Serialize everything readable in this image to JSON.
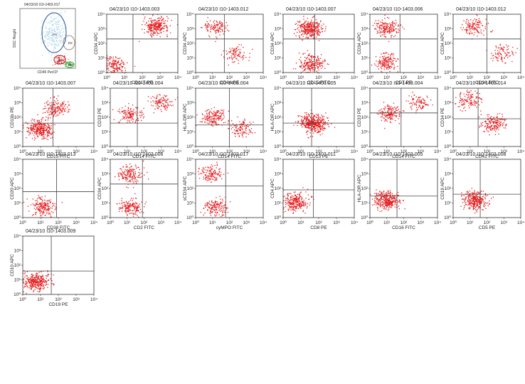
{
  "colors": {
    "dots": "#e41a1c",
    "axis": "#333333",
    "quad": "#444444",
    "gate_lymph": "#2e9e2e",
    "gate_blast": "#c00000",
    "gate_main": "#1f4e9a",
    "gate_other": "#8a6d57",
    "dots_blue": "#8fc3e6"
  },
  "gating_plot": {
    "title": "04/23/10 I10-1403.017",
    "xlabel": "CD45 PerCP",
    "ylabel": "SSC Height",
    "gate_labels": [
      "R4",
      "R2",
      "R1",
      "R3"
    ]
  },
  "chart_data": [
    {
      "type": "scatter",
      "title": "04/23/10 I10-1403.003",
      "xlabel": "CD117 PE",
      "ylabel": "CD34 APC",
      "x_ticks": [
        "10⁰",
        "10¹",
        "10²",
        "10³",
        "10⁴"
      ],
      "y_ticks": [
        "10⁰",
        "10¹",
        "10²",
        "10³",
        "10⁴"
      ],
      "xlim": [
        1,
        10000
      ],
      "ylim": [
        1,
        10000
      ],
      "log_scale": true,
      "quadrant": [
        30,
        200
      ],
      "populations": [
        {
          "cx": 600,
          "cy": 1500,
          "n": 260
        },
        {
          "cx": 3,
          "cy": 3,
          "n": 150
        }
      ]
    },
    {
      "type": "scatter",
      "title": "04/23/10 I10-1403.012",
      "xlabel": "CD64 PE",
      "ylabel": "CD34 APC",
      "x_ticks": [
        "10⁰",
        "10¹",
        "10²",
        "10³",
        "10⁴"
      ],
      "y_ticks": [
        "10⁰",
        "10¹",
        "10²",
        "10³",
        "10⁴"
      ],
      "xlim": [
        1,
        10000
      ],
      "ylim": [
        1,
        10000
      ],
      "log_scale": true,
      "quadrant": [
        50,
        200
      ],
      "populations": [
        {
          "cx": 15,
          "cy": 1200,
          "n": 120
        },
        {
          "cx": 250,
          "cy": 20,
          "n": 90
        }
      ]
    },
    {
      "type": "scatter",
      "title": "04/23/10 I10-1403.007",
      "xlabel": "CD15 FITC",
      "ylabel": "CD34 APC",
      "x_ticks": [
        "10⁰",
        "10¹",
        "10²",
        "10³",
        "10⁴"
      ],
      "y_ticks": [
        "10⁰",
        "10¹",
        "10²",
        "10³",
        "10⁴"
      ],
      "xlim": [
        1,
        10000
      ],
      "ylim": [
        1,
        10000
      ],
      "log_scale": true,
      "quadrant": [
        60,
        200
      ],
      "populations": [
        {
          "cx": 30,
          "cy": 1000,
          "n": 320
        },
        {
          "cx": 40,
          "cy": 4,
          "n": 220
        }
      ]
    },
    {
      "type": "scatter",
      "title": "04/23/10 I10-1403.006",
      "xlabel": "CD7 PE",
      "ylabel": "CD34 APC",
      "x_ticks": [
        "10⁰",
        "10¹",
        "10²",
        "10³",
        "10⁴"
      ],
      "y_ticks": [
        "10⁰",
        "10¹",
        "10²",
        "10³",
        "10⁴"
      ],
      "xlim": [
        1,
        10000
      ],
      "ylim": [
        1,
        10000
      ],
      "log_scale": true,
      "quadrant": [
        60,
        200
      ],
      "populations": [
        {
          "cx": 10,
          "cy": 1200,
          "n": 180
        },
        {
          "cx": 10,
          "cy": 5,
          "n": 160
        }
      ]
    },
    {
      "type": "scatter",
      "title": "04/23/10 I10-1403.012",
      "xlabel": "CD36 FITC",
      "ylabel": "CD34 APC",
      "x_ticks": [
        "10⁰",
        "10¹",
        "10²",
        "10³",
        "10⁴"
      ],
      "y_ticks": [
        "10⁰",
        "10¹",
        "10²",
        "10³",
        "10⁴"
      ],
      "xlim": [
        1,
        10000
      ],
      "ylim": [
        1,
        10000
      ],
      "log_scale": true,
      "quadrant": [
        100,
        200
      ],
      "populations": [
        {
          "cx": 20,
          "cy": 1500,
          "n": 130
        },
        {
          "cx": 800,
          "cy": 20,
          "n": 90
        }
      ]
    },
    {
      "type": "scatter",
      "title": "04/23/10 I10-1403.007",
      "xlabel": "CD15 FITC",
      "ylabel": "CD11b PE",
      "x_ticks": [
        "10⁰",
        "10¹",
        "10²",
        "10³",
        "10⁴"
      ],
      "y_ticks": [
        "10⁰",
        "10¹",
        "10²",
        "10³",
        "10⁴"
      ],
      "xlim": [
        1,
        10000
      ],
      "ylim": [
        1,
        10000
      ],
      "log_scale": true,
      "quadrant": [
        50,
        40
      ],
      "populations": [
        {
          "cx": 10,
          "cy": 15,
          "n": 300
        },
        {
          "cx": 60,
          "cy": 400,
          "n": 160
        }
      ]
    },
    {
      "type": "scatter",
      "title": "04/23/10 I10-1403.004",
      "xlabel": "CD14 FITC",
      "ylabel": "CD33 PE",
      "x_ticks": [
        "10⁰",
        "10¹",
        "10²",
        "10³",
        "10⁴"
      ],
      "y_ticks": [
        "10⁰",
        "10¹",
        "10²",
        "10³",
        "10⁴"
      ],
      "xlim": [
        1,
        10000
      ],
      "ylim": [
        1,
        10000
      ],
      "log_scale": true,
      "quadrant": [
        40,
        40
      ],
      "populations": [
        {
          "cx": 15,
          "cy": 150,
          "n": 140
        },
        {
          "cx": 1000,
          "cy": 1000,
          "n": 110
        }
      ]
    },
    {
      "type": "scatter",
      "title": "04/23/10 I10-1403.004",
      "xlabel": "CD14 FITC",
      "ylabel": "HLA-DR APC",
      "x_ticks": [
        "10⁰",
        "10¹",
        "10²",
        "10³",
        "10⁴"
      ],
      "y_ticks": [
        "10⁰",
        "10¹",
        "10²",
        "10³",
        "10⁴"
      ],
      "xlim": [
        1,
        10000
      ],
      "ylim": [
        1,
        10000
      ],
      "log_scale": true,
      "quadrant": [
        100,
        30
      ],
      "populations": [
        {
          "cx": 10,
          "cy": 100,
          "n": 160
        },
        {
          "cx": 500,
          "cy": 15,
          "n": 110
        }
      ]
    },
    {
      "type": "scatter",
      "title": "04/23/10 I10-1403.005",
      "xlabel": "CD13 PE",
      "ylabel": "HLA-DR APC",
      "x_ticks": [
        "10⁰",
        "10¹",
        "10²",
        "10³",
        "10⁴"
      ],
      "y_ticks": [
        "10⁰",
        "10¹",
        "10²",
        "10³",
        "10⁴"
      ],
      "xlim": [
        1,
        10000
      ],
      "ylim": [
        1,
        10000
      ],
      "log_scale": true,
      "quadrant": [
        40,
        40
      ],
      "populations": [
        {
          "cx": 50,
          "cy": 40,
          "n": 420
        }
      ]
    },
    {
      "type": "scatter",
      "title": "04/23/10 I10-1403.004",
      "xlabel": "CD14 FITC",
      "ylabel": "CD33 PE",
      "x_ticks": [
        "10⁰",
        "10¹",
        "10²",
        "10³",
        "10⁴"
      ],
      "y_ticks": [
        "10⁰",
        "10¹",
        "10²",
        "10³",
        "10⁴"
      ],
      "xlim": [
        1,
        10000
      ],
      "ylim": [
        1,
        10000
      ],
      "log_scale": true,
      "quadrant": [
        70,
        200
      ],
      "populations": [
        {
          "cx": 15,
          "cy": 200,
          "n": 150
        },
        {
          "cx": 800,
          "cy": 1000,
          "n": 90
        }
      ]
    },
    {
      "type": "scatter",
      "title": "04/23/10 I10-1403.014",
      "xlabel": "CD41 FITC",
      "ylabel": "CD34 PE",
      "x_ticks": [
        "10⁰",
        "10¹",
        "10²",
        "10³",
        "10⁴"
      ],
      "y_ticks": [
        "10⁰",
        "10¹",
        "10²",
        "10³",
        "10⁴"
      ],
      "xlim": [
        1,
        10000
      ],
      "ylim": [
        1,
        10000
      ],
      "log_scale": true,
      "quadrant": [
        30,
        80
      ],
      "populations": [
        {
          "cx": 8,
          "cy": 1500,
          "n": 120
        },
        {
          "cx": 250,
          "cy": 40,
          "n": 180
        }
      ]
    },
    {
      "type": "scatter",
      "title": "04/23/10 I10-1403.013",
      "xlabel": "CD38 FITC",
      "ylabel": "CD20 APC",
      "x_ticks": [
        "10⁰",
        "10¹",
        "10²",
        "10³",
        "10⁴"
      ],
      "y_ticks": [
        "10⁰",
        "10¹",
        "10²",
        "10³",
        "10⁴"
      ],
      "xlim": [
        1,
        10000
      ],
      "ylim": [
        1,
        10000
      ],
      "log_scale": true,
      "quadrant": [
        80,
        60
      ],
      "populations": [
        {
          "cx": 15,
          "cy": 5,
          "n": 180
        }
      ]
    },
    {
      "type": "scatter",
      "title": "04/23/10 I10-1403.006",
      "xlabel": "CD2 FITC",
      "ylabel": "CD34 APC",
      "x_ticks": [
        "10⁰",
        "10¹",
        "10²",
        "10³",
        "10⁴"
      ],
      "y_ticks": [
        "10⁰",
        "10¹",
        "10²",
        "10³",
        "10⁴"
      ],
      "xlim": [
        1,
        10000
      ],
      "ylim": [
        1,
        10000
      ],
      "log_scale": true,
      "quadrant": [
        80,
        200
      ],
      "populations": [
        {
          "cx": 15,
          "cy": 1000,
          "n": 160
        },
        {
          "cx": 15,
          "cy": 5,
          "n": 160
        }
      ]
    },
    {
      "type": "scatter",
      "title": "04/23/10 I10-1403.017",
      "xlabel": "cyMPO FITC",
      "ylabel": "sCD34 APC",
      "x_ticks": [
        "10⁰",
        "10¹",
        "10²",
        "10³",
        "10⁴"
      ],
      "y_ticks": [
        "10⁰",
        "10¹",
        "10²",
        "10³",
        "10⁴"
      ],
      "xlim": [
        1,
        10000
      ],
      "ylim": [
        1,
        10000
      ],
      "log_scale": true,
      "quadrant": [
        60,
        150
      ],
      "populations": [
        {
          "cx": 10,
          "cy": 1000,
          "n": 130
        },
        {
          "cx": 15,
          "cy": 5,
          "n": 150
        }
      ]
    },
    {
      "type": "scatter",
      "title": "04/23/10 I10-1403.011",
      "xlabel": "CD8 PE",
      "ylabel": "CD4 APC",
      "x_ticks": [
        "10⁰",
        "10¹",
        "10²",
        "10³",
        "10⁴"
      ],
      "y_ticks": [
        "10⁰",
        "10¹",
        "10²",
        "10³",
        "10⁴"
      ],
      "xlim": [
        1,
        10000
      ],
      "ylim": [
        1,
        10000
      ],
      "log_scale": true,
      "quadrant": [
        50,
        80
      ],
      "populations": [
        {
          "cx": 5,
          "cy": 12,
          "n": 260
        }
      ]
    },
    {
      "type": "scatter",
      "title": "04/23/10 I10-1403.005",
      "xlabel": "CD16 FITC",
      "ylabel": "HLA-DR APC",
      "x_ticks": [
        "10⁰",
        "10¹",
        "10²",
        "10³",
        "10⁴"
      ],
      "y_ticks": [
        "10⁰",
        "10¹",
        "10²",
        "10³",
        "10⁴"
      ],
      "xlim": [
        1,
        10000
      ],
      "ylim": [
        1,
        10000
      ],
      "log_scale": true,
      "quadrant": [
        40,
        30
      ],
      "populations": [
        {
          "cx": 10,
          "cy": 15,
          "n": 320
        }
      ]
    },
    {
      "type": "scatter",
      "title": "04/23/10 I10-1403.008",
      "xlabel": "CD5 PE",
      "ylabel": "CD19 APC",
      "x_ticks": [
        "10⁰",
        "10¹",
        "10²",
        "10³",
        "10⁴"
      ],
      "y_ticks": [
        "10⁰",
        "10¹",
        "10²",
        "10³",
        "10⁴"
      ],
      "xlim": [
        1,
        10000
      ],
      "ylim": [
        1,
        10000
      ],
      "log_scale": true,
      "quadrant": [
        40,
        40
      ],
      "populations": [
        {
          "cx": 20,
          "cy": 15,
          "n": 300
        }
      ]
    },
    {
      "type": "scatter",
      "title": "04/23/10 I10-1403.009",
      "xlabel": "CD19 PE",
      "ylabel": "CD10 APC",
      "x_ticks": [
        "10⁰",
        "10¹",
        "10²",
        "10³",
        "10⁴"
      ],
      "y_ticks": [
        "10⁰",
        "10¹",
        "10²",
        "10³",
        "10⁴"
      ],
      "xlim": [
        1,
        10000
      ],
      "ylim": [
        1,
        10000
      ],
      "log_scale": true,
      "quadrant": [
        40,
        40
      ],
      "populations": [
        {
          "cx": 6,
          "cy": 8,
          "n": 320
        }
      ]
    }
  ]
}
